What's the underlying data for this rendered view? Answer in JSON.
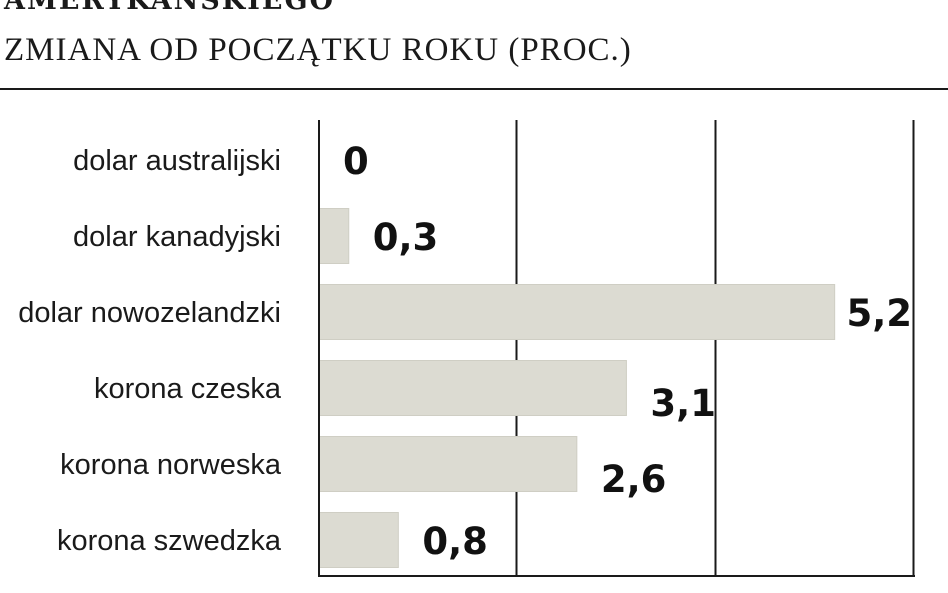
{
  "title": "AMERYKAŃSKIEGO",
  "subtitle": "ZMIANA OD POCZĄTKU ROKU (PROC.)",
  "colors": {
    "bar": "#dcdbd2",
    "bar_stroke": "#cfcec4",
    "axis": "#1a1a1a",
    "text": "#1a1a1a"
  },
  "chart_data": {
    "type": "bar",
    "orientation": "horizontal",
    "categories": [
      "dolar australijski",
      "dolar kanadyjski",
      "dolar nowozelandzki",
      "korona czeska",
      "korona norweska",
      "korona szwedzka"
    ],
    "values": [
      0,
      0.3,
      5.2,
      3.1,
      2.6,
      0.8
    ],
    "value_labels": [
      "0",
      "0,3",
      "5,2",
      "3,1",
      "2,6",
      "0,8"
    ],
    "xlim": [
      0,
      6
    ],
    "grid": true
  }
}
